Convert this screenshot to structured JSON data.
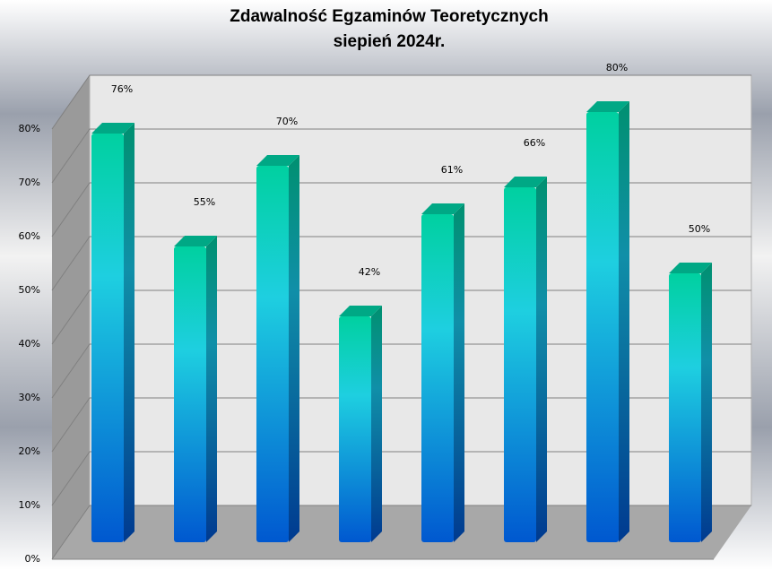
{
  "chart_data": {
    "type": "bar3d",
    "title": "Zdawalność Egzaminów Teoretycznych",
    "subtitle": "siepień 2024r.",
    "categories": [
      null,
      null,
      null,
      null,
      null,
      null,
      null,
      null
    ],
    "values": [
      76,
      55,
      70,
      42,
      61,
      66,
      80,
      50
    ],
    "value_labels": [
      "76%",
      "55%",
      "70%",
      "42%",
      "61%",
      "66%",
      "80%",
      "50%"
    ],
    "color": "#1ecfe0",
    "ylim": [
      0,
      80
    ],
    "yticks": [
      {
        "value": 0,
        "label": "0%"
      },
      {
        "value": 10,
        "label": "10%"
      },
      {
        "value": 20,
        "label": "20%"
      },
      {
        "value": 30,
        "label": "30%"
      },
      {
        "value": 40,
        "label": "40%"
      },
      {
        "value": 50,
        "label": "50%"
      },
      {
        "value": 60,
        "label": "60%"
      },
      {
        "value": 70,
        "label": "70%"
      },
      {
        "value": 80,
        "label": "80%"
      }
    ],
    "grid": true
  }
}
